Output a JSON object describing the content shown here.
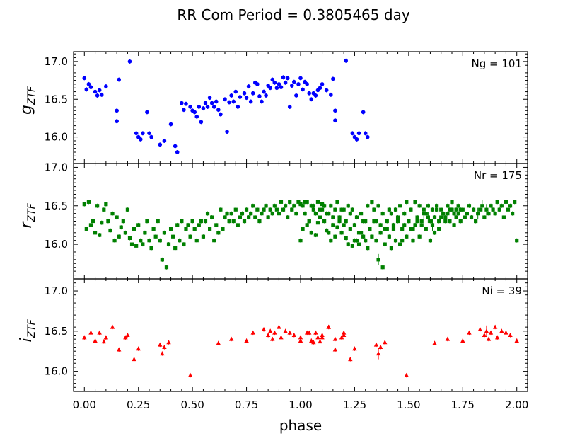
{
  "figure": {
    "title": "RR Com   Period = 0.3805465 day",
    "xlabel": "phase"
  },
  "chart_data": [
    {
      "type": "scatter",
      "panel": "g",
      "ylabel_main": "g",
      "ylabel_sub": "ZTF",
      "annotation": "Ng = 101",
      "color": "#0000ff",
      "marker": "circle",
      "xlim": [
        -0.05,
        2.05
      ],
      "ylim": [
        17.13,
        15.65
      ],
      "yticks": [
        "16.0",
        "16.5",
        "17.0"
      ],
      "ytick_values": [
        16.0,
        16.5,
        17.0
      ],
      "phase": [
        0.0,
        0.01,
        0.02,
        0.03,
        0.05,
        0.06,
        0.07,
        0.08,
        0.1,
        0.15,
        0.15,
        0.16,
        0.21,
        0.24,
        0.25,
        0.26,
        0.27,
        0.29,
        0.3,
        0.31,
        0.35,
        0.37,
        0.4,
        0.42,
        0.43,
        0.45,
        0.46,
        0.47,
        0.49,
        0.5,
        0.51,
        0.52,
        0.53,
        0.54,
        0.55,
        0.56,
        0.57,
        0.58,
        0.59,
        0.6,
        0.61,
        0.62,
        0.63,
        0.65,
        0.66,
        0.67,
        0.68,
        0.69,
        0.7,
        0.71,
        0.72,
        0.74,
        0.75,
        0.76,
        0.77,
        0.78,
        0.79,
        0.8,
        0.81,
        0.82,
        0.83,
        0.84,
        0.85,
        0.86,
        0.87,
        0.88,
        0.89,
        0.9,
        0.91,
        0.92,
        0.93,
        0.94,
        0.95,
        0.96,
        0.97,
        0.98,
        0.99,
        1.0,
        1.01,
        1.02,
        1.03,
        1.04,
        1.05,
        1.06,
        1.07,
        1.08,
        1.09,
        1.1,
        1.12,
        1.14,
        1.15,
        1.16,
        1.16,
        1.21,
        1.24,
        1.25,
        1.26,
        1.27,
        1.29,
        1.3,
        1.31
      ],
      "mag": [
        16.78,
        16.63,
        16.7,
        16.66,
        16.6,
        16.55,
        16.62,
        16.56,
        16.67,
        16.35,
        16.21,
        16.76,
        17.0,
        16.05,
        16.0,
        15.97,
        16.05,
        16.33,
        16.05,
        16.0,
        15.9,
        15.95,
        16.17,
        15.88,
        15.8,
        16.45,
        16.36,
        16.44,
        16.4,
        16.35,
        16.33,
        16.27,
        16.4,
        16.2,
        16.38,
        16.45,
        16.4,
        16.52,
        16.45,
        16.4,
        16.47,
        16.36,
        16.3,
        16.5,
        16.07,
        16.46,
        16.55,
        16.47,
        16.6,
        16.4,
        16.53,
        16.58,
        16.52,
        16.67,
        16.47,
        16.58,
        16.72,
        16.7,
        16.54,
        16.47,
        16.6,
        16.55,
        16.68,
        16.65,
        16.76,
        16.72,
        16.65,
        16.7,
        16.66,
        16.79,
        16.72,
        16.78,
        16.4,
        16.68,
        16.73,
        16.55,
        16.7,
        16.78,
        16.63,
        16.73,
        16.7,
        16.58,
        16.5,
        16.58,
        16.55,
        16.62,
        16.65,
        16.7,
        16.62,
        16.56,
        16.77,
        16.22,
        16.35,
        17.01,
        16.05,
        16.0,
        15.97,
        16.05,
        16.33,
        16.05,
        16.0
      ]
    },
    {
      "type": "scatter",
      "panel": "r",
      "ylabel_main": "r",
      "ylabel_sub": "ZTF",
      "annotation": "Nr = 175",
      "color": "#008000",
      "marker": "square",
      "xlim": [
        -0.05,
        2.05
      ],
      "ylim": [
        17.05,
        15.55
      ],
      "yticks": [
        "16.0",
        "16.5",
        "17.0"
      ],
      "ytick_values": [
        16.0,
        16.5,
        17.0
      ],
      "phase": [
        0.0,
        0.01,
        0.02,
        0.03,
        0.04,
        0.05,
        0.06,
        0.07,
        0.08,
        0.09,
        0.1,
        0.11,
        0.12,
        0.13,
        0.14,
        0.15,
        0.16,
        0.17,
        0.18,
        0.19,
        0.2,
        0.21,
        0.22,
        0.23,
        0.24,
        0.25,
        0.26,
        0.27,
        0.28,
        0.29,
        0.3,
        0.31,
        0.32,
        0.33,
        0.34,
        0.35,
        0.36,
        0.37,
        0.38,
        0.39,
        0.4,
        0.41,
        0.42,
        0.43,
        0.44,
        0.45,
        0.46,
        0.47,
        0.48,
        0.49,
        0.5,
        0.51,
        0.52,
        0.53,
        0.54,
        0.55,
        0.56,
        0.57,
        0.58,
        0.59,
        0.6,
        0.61,
        0.62,
        0.63,
        0.64,
        0.65,
        0.66,
        0.67,
        0.68,
        0.69,
        0.7,
        0.71,
        0.72,
        0.73,
        0.74,
        0.75,
        0.76,
        0.77,
        0.78,
        0.79,
        0.8,
        0.81,
        0.82,
        0.83,
        0.84,
        0.85,
        0.86,
        0.87,
        0.88,
        0.89,
        0.9,
        0.91,
        0.92,
        0.93,
        0.94,
        0.95,
        0.96,
        0.97,
        0.98,
        0.99,
        1.0,
        1.01,
        1.02,
        1.03,
        1.04,
        1.05,
        1.06,
        1.07,
        1.08,
        1.09,
        1.1,
        1.11,
        1.12,
        1.13,
        1.14,
        1.15,
        1.16,
        1.17,
        1.18,
        1.19,
        1.2,
        1.21,
        1.22,
        1.23,
        1.24,
        1.25,
        1.26,
        1.27,
        1.28,
        1.29,
        1.3,
        1.31,
        1.32,
        1.33,
        1.34,
        1.35,
        1.36,
        1.37,
        1.38,
        1.39,
        1.4,
        1.41,
        1.42,
        1.43,
        1.44,
        1.45,
        1.46,
        1.47,
        1.48,
        1.49,
        1.5,
        1.51,
        1.52,
        1.53,
        1.54,
        1.55,
        1.56,
        1.57,
        1.58,
        1.59,
        1.6,
        1.61,
        1.62,
        1.63,
        1.64,
        1.65,
        1.66,
        1.67,
        1.68,
        1.69,
        1.7,
        1.71,
        1.72,
        1.73,
        1.74
      ],
      "mag": [
        16.52,
        16.2,
        16.55,
        16.25,
        16.3,
        16.15,
        16.5,
        16.12,
        16.28,
        16.45,
        16.52,
        16.3,
        16.18,
        16.4,
        16.05,
        16.35,
        16.1,
        16.22,
        16.3,
        16.15,
        16.45,
        16.08,
        16.0,
        16.2,
        15.98,
        16.25,
        16.05,
        16.0,
        16.15,
        16.3,
        16.05,
        15.95,
        16.2,
        16.1,
        16.3,
        16.05,
        15.8,
        16.15,
        15.7,
        16.0,
        16.2,
        16.1,
        15.95,
        16.25,
        16.05,
        16.3,
        16.0,
        16.2,
        16.25,
        16.1,
        16.3,
        16.2,
        16.05,
        16.25,
        16.3,
        16.1,
        16.3,
        16.4,
        16.2,
        16.35,
        16.05,
        16.25,
        16.15,
        16.45,
        16.2,
        16.35,
        16.4,
        16.3,
        16.4,
        16.3,
        16.45,
        16.25,
        16.35,
        16.4,
        16.3,
        16.45,
        16.35,
        16.4,
        16.5,
        16.35,
        16.45,
        16.3,
        16.4,
        16.45,
        16.5,
        16.35,
        16.45,
        16.4,
        16.5,
        16.45,
        16.4,
        16.55,
        16.45,
        16.5,
        16.35,
        16.55,
        16.45,
        16.5,
        16.4,
        16.55,
        16.05,
        16.5,
        16.4,
        16.55,
        16.3,
        16.5,
        16.45,
        16.4,
        16.55,
        16.35,
        16.45,
        16.5,
        16.4,
        16.15,
        16.5,
        16.25,
        16.45,
        16.55,
        16.35,
        16.45,
        16.25,
        16.3,
        16.5,
        16.4,
        16.45,
        16.05,
        16.35,
        16.15,
        16.4,
        16.1,
        16.3,
        16.5,
        16.2,
        16.55,
        16.45,
        16.3,
        16.5,
        16.25,
        16.4,
        16.2,
        16.3,
        16.45,
        16.4,
        16.2,
        16.45,
        16.35,
        16.5,
        16.05,
        16.4,
        16.55,
        16.3,
        16.45,
        16.2,
        16.55,
        16.35,
        16.5,
        16.25,
        16.45,
        16.4,
        16.5,
        16.3,
        16.45,
        16.35,
        16.5,
        16.3,
        16.45,
        16.4,
        16.35,
        16.5,
        16.45,
        16.55,
        16.4,
        16.45,
        16.5,
        16.45
      ],
      "mirror_offset": 1.0
    },
    {
      "type": "scatter",
      "panel": "i",
      "ylabel_main": "i",
      "ylabel_sub": "ZTF",
      "annotation": "Ni = 39",
      "color": "#ff0000",
      "marker": "triangle",
      "xlim": [
        -0.05,
        2.05
      ],
      "ylim": [
        17.15,
        15.75
      ],
      "yticks": [
        "16.0",
        "16.5",
        "17.0"
      ],
      "ytick_values": [
        16.0,
        16.5,
        17.0
      ],
      "phase": [
        0.0,
        0.03,
        0.05,
        0.07,
        0.09,
        0.1,
        0.13,
        0.16,
        0.19,
        0.2,
        0.23,
        0.25,
        0.35,
        0.36,
        0.37,
        0.39,
        0.49,
        0.62,
        0.68,
        0.75,
        0.78,
        0.83,
        0.85,
        0.86,
        0.87,
        0.88,
        0.9,
        0.91,
        0.93,
        0.95,
        0.97,
        1.0,
        1.04,
        1.06,
        1.08,
        1.1,
        1.13,
        1.16,
        1.2
      ],
      "mag": [
        16.42,
        16.48,
        16.38,
        16.48,
        16.37,
        16.42,
        16.55,
        16.27,
        16.42,
        16.45,
        16.15,
        16.28,
        16.33,
        16.22,
        16.3,
        16.36,
        15.95,
        16.35,
        16.4,
        16.38,
        16.48,
        16.52,
        16.45,
        16.5,
        16.4,
        16.48,
        16.55,
        16.42,
        16.5,
        16.48,
        16.45,
        16.38,
        16.48,
        16.36,
        16.42,
        16.45,
        16.55,
        16.4,
        16.48
      ],
      "mirror_offset": 1.0
    }
  ],
  "x_axis": {
    "xlim": [
      -0.05,
      2.05
    ],
    "tick_values": [
      0.0,
      0.25,
      0.5,
      0.75,
      1.0,
      1.25,
      1.5,
      1.75,
      2.0
    ],
    "tick_labels": [
      "0.00",
      "0.25",
      "0.50",
      "0.75",
      "1.00",
      "1.25",
      "1.50",
      "1.75",
      "2.00"
    ]
  }
}
